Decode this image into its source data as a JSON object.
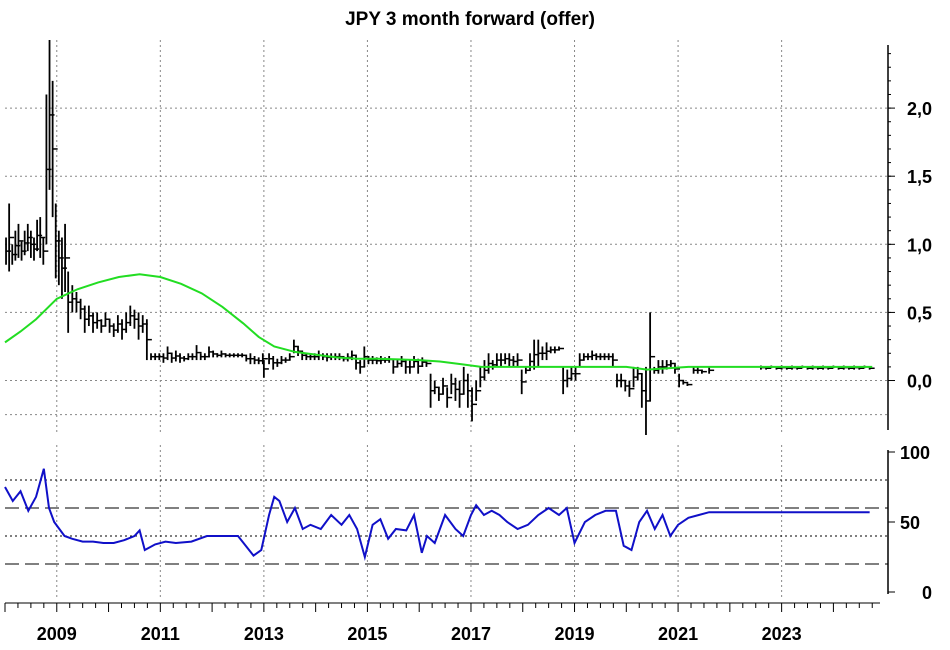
{
  "chart_data": [
    {
      "type": "bar",
      "subtype": "ohlc",
      "title": "JPY 3 month forward (offer)",
      "xlabel": "",
      "ylabel": "",
      "xlim": [
        2008.0,
        2024.9
      ],
      "ylim": [
        -0.4,
        2.5
      ],
      "y_ticks": [
        "0,0",
        "0,5",
        "1,0",
        "1,5",
        "2,0"
      ],
      "y_tick_values": [
        0.0,
        0.5,
        1.0,
        1.5,
        2.0
      ],
      "x_ticks": [
        "2009",
        "2011",
        "2013",
        "2015",
        "2017",
        "2019",
        "2021",
        "2023"
      ],
      "x_tick_values": [
        2009,
        2011,
        2013,
        2015,
        2017,
        2019,
        2021,
        2023
      ],
      "grid": true,
      "colors": {
        "price": "#000000",
        "moving_average": "#22dd22"
      },
      "price_bars": [
        [
          2008.02,
          1.05,
          0.85
        ],
        [
          2008.08,
          1.3,
          0.8
        ],
        [
          2008.14,
          1.0,
          0.85
        ],
        [
          2008.2,
          1.1,
          0.88
        ],
        [
          2008.26,
          1.15,
          0.9
        ],
        [
          2008.32,
          1.02,
          0.88
        ],
        [
          2008.38,
          1.1,
          0.92
        ],
        [
          2008.44,
          1.15,
          0.95
        ],
        [
          2008.5,
          1.1,
          0.9
        ],
        [
          2008.56,
          1.05,
          0.88
        ],
        [
          2008.62,
          1.18,
          0.95
        ],
        [
          2008.68,
          1.2,
          0.9
        ],
        [
          2008.74,
          1.05,
          0.85
        ],
        [
          2008.8,
          2.1,
          1.0
        ],
        [
          2008.86,
          2.5,
          1.4
        ],
        [
          2008.92,
          2.2,
          1.2
        ],
        [
          2008.98,
          1.3,
          0.75
        ],
        [
          2009.04,
          1.1,
          0.7
        ],
        [
          2009.1,
          1.05,
          0.6
        ],
        [
          2009.16,
          1.15,
          0.65
        ],
        [
          2009.22,
          0.8,
          0.35
        ],
        [
          2009.3,
          0.7,
          0.5
        ],
        [
          2009.38,
          0.65,
          0.5
        ],
        [
          2009.46,
          0.6,
          0.45
        ],
        [
          2009.54,
          0.55,
          0.35
        ],
        [
          2009.62,
          0.55,
          0.4
        ],
        [
          2009.7,
          0.5,
          0.35
        ],
        [
          2009.78,
          0.5,
          0.38
        ],
        [
          2009.86,
          0.45,
          0.35
        ],
        [
          2009.94,
          0.5,
          0.4
        ],
        [
          2010.02,
          0.45,
          0.35
        ],
        [
          2010.1,
          0.42,
          0.32
        ],
        [
          2010.18,
          0.48,
          0.35
        ],
        [
          2010.26,
          0.45,
          0.3
        ],
        [
          2010.34,
          0.5,
          0.35
        ],
        [
          2010.42,
          0.55,
          0.4
        ],
        [
          2010.5,
          0.52,
          0.38
        ],
        [
          2010.58,
          0.5,
          0.3
        ],
        [
          2010.66,
          0.48,
          0.35
        ],
        [
          2010.74,
          0.45,
          0.15
        ],
        [
          2010.82,
          0.2,
          0.15
        ],
        [
          2010.9,
          0.2,
          0.15
        ],
        [
          2010.98,
          0.2,
          0.15
        ],
        [
          2011.06,
          0.2,
          0.13
        ],
        [
          2011.14,
          0.25,
          0.15
        ],
        [
          2011.22,
          0.2,
          0.13
        ],
        [
          2011.3,
          0.22,
          0.14
        ],
        [
          2011.38,
          0.2,
          0.13
        ],
        [
          2011.46,
          0.18,
          0.14
        ],
        [
          2011.54,
          0.2,
          0.15
        ],
        [
          2011.62,
          0.2,
          0.15
        ],
        [
          2011.7,
          0.26,
          0.15
        ],
        [
          2011.78,
          0.2,
          0.15
        ],
        [
          2011.86,
          0.2,
          0.15
        ],
        [
          2011.94,
          0.25,
          0.17
        ],
        [
          2012.02,
          0.22,
          0.17
        ],
        [
          2012.1,
          0.2,
          0.17
        ],
        [
          2012.18,
          0.22,
          0.17
        ],
        [
          2012.26,
          0.2,
          0.17
        ],
        [
          2012.34,
          0.2,
          0.17
        ],
        [
          2012.42,
          0.2,
          0.17
        ],
        [
          2012.5,
          0.2,
          0.17
        ],
        [
          2012.58,
          0.2,
          0.17
        ],
        [
          2012.66,
          0.18,
          0.14
        ],
        [
          2012.74,
          0.2,
          0.12
        ],
        [
          2012.82,
          0.18,
          0.12
        ],
        [
          2012.9,
          0.17,
          0.12
        ],
        [
          2012.98,
          0.2,
          0.12
        ],
        [
          2013.0,
          0.15,
          0.02
        ],
        [
          2013.1,
          0.2,
          0.12
        ],
        [
          2013.18,
          0.18,
          0.08
        ],
        [
          2013.26,
          0.16,
          0.1
        ],
        [
          2013.34,
          0.18,
          0.12
        ],
        [
          2013.42,
          0.17,
          0.13
        ],
        [
          2013.5,
          0.2,
          0.15
        ],
        [
          2013.58,
          0.3,
          0.2
        ],
        [
          2013.66,
          0.25,
          0.18
        ],
        [
          2013.74,
          0.22,
          0.15
        ],
        [
          2013.82,
          0.2,
          0.15
        ],
        [
          2013.9,
          0.2,
          0.15
        ],
        [
          2013.98,
          0.2,
          0.15
        ],
        [
          2014.06,
          0.22,
          0.15
        ],
        [
          2014.14,
          0.2,
          0.15
        ],
        [
          2014.22,
          0.2,
          0.14
        ],
        [
          2014.3,
          0.2,
          0.15
        ],
        [
          2014.38,
          0.2,
          0.15
        ],
        [
          2014.46,
          0.2,
          0.15
        ],
        [
          2014.54,
          0.18,
          0.14
        ],
        [
          2014.62,
          0.2,
          0.14
        ],
        [
          2014.7,
          0.22,
          0.15
        ],
        [
          2014.78,
          0.18,
          0.08
        ],
        [
          2014.86,
          0.15,
          0.05
        ],
        [
          2014.94,
          0.25,
          0.1
        ],
        [
          2015.02,
          0.18,
          0.12
        ],
        [
          2015.1,
          0.18,
          0.12
        ],
        [
          2015.18,
          0.17,
          0.12
        ],
        [
          2015.26,
          0.18,
          0.12
        ],
        [
          2015.34,
          0.17,
          0.13
        ],
        [
          2015.42,
          0.18,
          0.13
        ],
        [
          2015.5,
          0.15,
          0.05
        ],
        [
          2015.58,
          0.15,
          0.1
        ],
        [
          2015.66,
          0.18,
          0.1
        ],
        [
          2015.74,
          0.15,
          0.05
        ],
        [
          2015.82,
          0.15,
          0.05
        ],
        [
          2015.9,
          0.18,
          0.1
        ],
        [
          2015.98,
          0.16,
          0.05
        ],
        [
          2016.06,
          0.17,
          0.1
        ],
        [
          2016.14,
          0.15,
          0.1
        ],
        [
          2016.22,
          0.05,
          -0.2
        ],
        [
          2016.3,
          0.0,
          -0.1
        ],
        [
          2016.38,
          -0.05,
          -0.15
        ],
        [
          2016.46,
          0.02,
          -0.1
        ],
        [
          2016.54,
          -0.05,
          -0.2
        ],
        [
          2016.62,
          0.05,
          -0.1
        ],
        [
          2016.7,
          0.02,
          -0.15
        ],
        [
          2016.78,
          0.0,
          -0.2
        ],
        [
          2016.86,
          0.1,
          -0.1
        ],
        [
          2016.94,
          0.05,
          -0.2
        ],
        [
          2017.02,
          -0.05,
          -0.3
        ],
        [
          2017.1,
          0.0,
          -0.15
        ],
        [
          2017.18,
          0.1,
          -0.05
        ],
        [
          2017.26,
          0.15,
          0.0
        ],
        [
          2017.34,
          0.2,
          0.05
        ],
        [
          2017.42,
          0.15,
          0.08
        ],
        [
          2017.5,
          0.2,
          0.1
        ],
        [
          2017.58,
          0.2,
          0.1
        ],
        [
          2017.66,
          0.2,
          0.12
        ],
        [
          2017.74,
          0.2,
          0.1
        ],
        [
          2017.82,
          0.18,
          0.1
        ],
        [
          2017.9,
          0.2,
          0.1
        ],
        [
          2017.98,
          0.08,
          -0.1
        ],
        [
          2018.06,
          0.1,
          0.05
        ],
        [
          2018.14,
          0.2,
          0.08
        ],
        [
          2018.22,
          0.3,
          0.08
        ],
        [
          2018.3,
          0.3,
          0.1
        ],
        [
          2018.38,
          0.25,
          0.15
        ],
        [
          2018.46,
          0.28,
          0.15
        ],
        [
          2018.54,
          0.25,
          0.2
        ],
        [
          2018.62,
          0.25,
          0.2
        ],
        [
          2018.7,
          0.25,
          0.22
        ],
        [
          2018.78,
          0.1,
          -0.1
        ],
        [
          2018.86,
          0.08,
          -0.05
        ],
        [
          2018.94,
          0.1,
          0.0
        ],
        [
          2019.02,
          0.1,
          0.0
        ],
        [
          2019.1,
          0.2,
          0.1
        ],
        [
          2019.18,
          0.2,
          0.15
        ],
        [
          2019.26,
          0.2,
          0.15
        ],
        [
          2019.34,
          0.22,
          0.15
        ],
        [
          2019.42,
          0.2,
          0.15
        ],
        [
          2019.5,
          0.2,
          0.15
        ],
        [
          2019.58,
          0.2,
          0.15
        ],
        [
          2019.66,
          0.2,
          0.15
        ],
        [
          2019.74,
          0.2,
          0.1
        ],
        [
          2019.82,
          0.05,
          -0.05
        ],
        [
          2019.9,
          0.05,
          -0.05
        ],
        [
          2019.98,
          0.0,
          -0.08
        ],
        [
          2020.06,
          0.0,
          -0.12
        ],
        [
          2020.14,
          0.1,
          -0.05
        ],
        [
          2020.22,
          0.1,
          0.0
        ],
        [
          2020.3,
          0.05,
          -0.2
        ],
        [
          2020.38,
          0.1,
          -0.4
        ],
        [
          2020.46,
          0.5,
          -0.15
        ],
        [
          2020.54,
          0.1,
          0.05
        ],
        [
          2020.62,
          0.15,
          0.05
        ],
        [
          2020.7,
          0.15,
          0.05
        ],
        [
          2020.78,
          0.15,
          0.08
        ],
        [
          2020.86,
          0.15,
          0.1
        ],
        [
          2020.94,
          0.12,
          0.05
        ],
        [
          2021.02,
          0.05,
          -0.05
        ],
        [
          2021.1,
          0.0,
          -0.03
        ],
        [
          2021.18,
          -0.02,
          -0.04
        ],
        [
          2021.3,
          0.1,
          0.05
        ],
        [
          2021.38,
          0.1,
          0.05
        ],
        [
          2021.46,
          0.08,
          0.05
        ],
        [
          2021.6,
          0.1,
          0.05
        ],
        [
          2022.6,
          0.11,
          0.08
        ],
        [
          2022.7,
          0.1,
          0.08
        ],
        [
          2022.8,
          0.11,
          0.09
        ],
        [
          2022.9,
          0.1,
          0.08
        ],
        [
          2023.0,
          0.11,
          0.08
        ],
        [
          2023.1,
          0.1,
          0.08
        ],
        [
          2023.2,
          0.11,
          0.08
        ],
        [
          2023.3,
          0.1,
          0.08
        ],
        [
          2023.4,
          0.11,
          0.09
        ],
        [
          2023.5,
          0.1,
          0.08
        ],
        [
          2023.6,
          0.11,
          0.08
        ],
        [
          2023.7,
          0.1,
          0.08
        ],
        [
          2023.8,
          0.11,
          0.08
        ],
        [
          2023.9,
          0.1,
          0.08
        ],
        [
          2024.0,
          0.11,
          0.09
        ],
        [
          2024.1,
          0.1,
          0.08
        ],
        [
          2024.2,
          0.11,
          0.08
        ],
        [
          2024.3,
          0.1,
          0.08
        ],
        [
          2024.4,
          0.11,
          0.08
        ],
        [
          2024.5,
          0.1,
          0.08
        ],
        [
          2024.6,
          0.11,
          0.09
        ],
        [
          2024.7,
          0.1,
          0.08
        ]
      ],
      "moving_average": {
        "x": [
          2008.0,
          2008.3,
          2008.6,
          2009.0,
          2009.4,
          2009.8,
          2010.2,
          2010.6,
          2011.0,
          2011.4,
          2011.8,
          2012.2,
          2012.6,
          2012.9,
          2013.2,
          2013.6,
          2014.0,
          2014.4,
          2014.8,
          2015.2,
          2015.6,
          2016.0,
          2016.4,
          2016.8,
          2017.2,
          2017.6,
          2018.0,
          2018.4,
          2018.8,
          2019.2,
          2019.6,
          2020.0,
          2020.4,
          2020.8,
          2021.2,
          2021.6,
          2022.0,
          2022.5,
          2023.0,
          2023.5,
          2024.0,
          2024.5,
          2024.75
        ],
        "y": [
          0.28,
          0.36,
          0.45,
          0.6,
          0.67,
          0.72,
          0.76,
          0.78,
          0.76,
          0.71,
          0.64,
          0.54,
          0.42,
          0.32,
          0.25,
          0.21,
          0.19,
          0.17,
          0.16,
          0.16,
          0.155,
          0.15,
          0.14,
          0.12,
          0.1,
          0.1,
          0.1,
          0.1,
          0.1,
          0.1,
          0.1,
          0.1,
          0.08,
          0.09,
          0.1,
          0.1,
          0.1,
          0.1,
          0.1,
          0.1,
          0.1,
          0.1,
          0.1
        ]
      }
    },
    {
      "type": "line",
      "title": "",
      "xlabel": "",
      "ylabel": "",
      "xlim": [
        2008.0,
        2024.9
      ],
      "ylim": [
        0,
        100
      ],
      "y_ticks": [
        "0",
        "50",
        "100"
      ],
      "y_tick_values": [
        0,
        50,
        100
      ],
      "dotted_levels": [
        40,
        80
      ],
      "dashed_levels": [
        20,
        60
      ],
      "grid": true,
      "colors": {
        "line": "#1010c8"
      },
      "series": [
        {
          "x": [
            2008.0,
            2008.15,
            2008.3,
            2008.45,
            2008.6,
            2008.75,
            2008.85,
            2008.95,
            2009.05,
            2009.15,
            2009.3,
            2009.5,
            2009.7,
            2009.9,
            2010.1,
            2010.3,
            2010.5,
            2010.6,
            2010.7,
            2010.9,
            2011.1,
            2011.3,
            2011.6,
            2011.9,
            2012.2,
            2012.5,
            2012.8,
            2012.95,
            2013.1,
            2013.2,
            2013.3,
            2013.45,
            2013.6,
            2013.75,
            2013.9,
            2014.1,
            2014.3,
            2014.5,
            2014.65,
            2014.8,
            2014.95,
            2015.1,
            2015.25,
            2015.4,
            2015.55,
            2015.75,
            2015.9,
            2016.05,
            2016.15,
            2016.3,
            2016.5,
            2016.7,
            2016.85,
            2017.0,
            2017.1,
            2017.25,
            2017.4,
            2017.55,
            2017.7,
            2017.9,
            2018.1,
            2018.3,
            2018.5,
            2018.7,
            2018.85,
            2019.0,
            2019.2,
            2019.4,
            2019.6,
            2019.8,
            2019.95,
            2020.1,
            2020.25,
            2020.4,
            2020.55,
            2020.7,
            2020.85,
            2021.0,
            2021.2,
            2021.4,
            2021.6,
            2022.5,
            2023.5,
            2024.7
          ],
          "values": [
            75,
            65,
            72,
            58,
            68,
            88,
            60,
            50,
            45,
            40,
            38,
            36,
            36,
            35,
            35,
            37,
            40,
            44,
            30,
            34,
            36,
            35,
            36,
            40,
            40,
            40,
            26,
            30,
            55,
            68,
            65,
            50,
            60,
            45,
            48,
            45,
            55,
            48,
            55,
            45,
            25,
            48,
            52,
            38,
            45,
            44,
            55,
            28,
            40,
            35,
            55,
            45,
            40,
            55,
            62,
            55,
            58,
            55,
            50,
            45,
            48,
            55,
            60,
            55,
            60,
            35,
            50,
            55,
            58,
            58,
            33,
            30,
            50,
            58,
            45,
            55,
            40,
            48,
            53,
            55,
            57,
            57,
            57,
            57
          ]
        }
      ]
    }
  ]
}
